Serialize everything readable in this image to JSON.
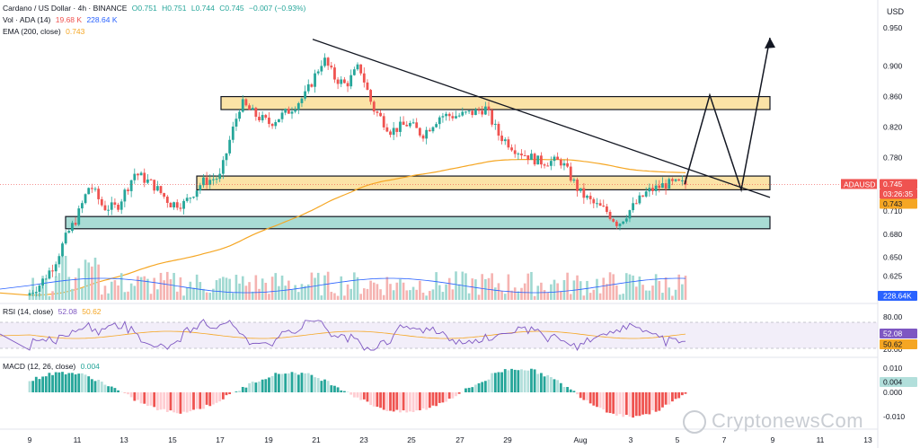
{
  "header": {
    "symbol_line": "Cardano / US Dollar · 4h · BINANCE",
    "ohlc": [
      "O0.751",
      "H0.751",
      "L0.744",
      "C0.745"
    ],
    "change": "−0.007 (−0.93%)",
    "vol_label": "Vol · ADA (14)",
    "vol_value1": "19.68 K",
    "vol_value2": "228.64 K",
    "ema_label": "EMA (200, close)",
    "ema_value": "0.743"
  },
  "currency": "USD",
  "badges": {
    "symbol": "ADAUSD",
    "price": "0.745",
    "countdown": "03:26:35",
    "ema": "0.743",
    "volume": "228.64K",
    "rsi_a": "52.08",
    "rsi_b": "50.62",
    "macd": "0.004"
  },
  "rsi_header": {
    "label": "RSI (14, close)",
    "v1": "52.08",
    "v2": "50.62"
  },
  "macd_header": {
    "label": "MACD (12, 26, close)",
    "v1": "0.004"
  },
  "watermark": "CryptonewsCom",
  "colors": {
    "up": "#26a69a",
    "down": "#ef5350",
    "ema": "#f5a623",
    "zone_orange": "#fbe3a6",
    "zone_teal": "#a9dcd5"
  },
  "chart_data": {
    "type": "candlestick",
    "x_ticks": [
      "9",
      "11",
      "13",
      "15",
      "17",
      "19",
      "21",
      "23",
      "25",
      "27",
      "29",
      "Aug",
      "3",
      "5",
      "7",
      "9",
      "11",
      "13"
    ],
    "price_axis": [
      "0.950",
      "0.900",
      "0.860",
      "0.820",
      "0.780",
      "0.740",
      "0.710",
      "0.680",
      "0.650",
      "0.625",
      "0.600"
    ],
    "ylim": [
      0.595,
      0.965
    ],
    "zones": [
      {
        "low": 0.843,
        "high": 0.86,
        "color": "orange"
      },
      {
        "low": 0.738,
        "high": 0.756,
        "color": "orange"
      },
      {
        "low": 0.687,
        "high": 0.703,
        "color": "teal"
      }
    ],
    "trendline": [
      [
        0.935,
        0.728
      ]
    ],
    "projection": [
      0.745,
      0.86,
      0.74,
      0.936
    ],
    "rsi_axis": [
      "80.00",
      "20.00"
    ],
    "macd_axis": [
      "0.010",
      "0.000",
      "-0.010"
    ]
  }
}
